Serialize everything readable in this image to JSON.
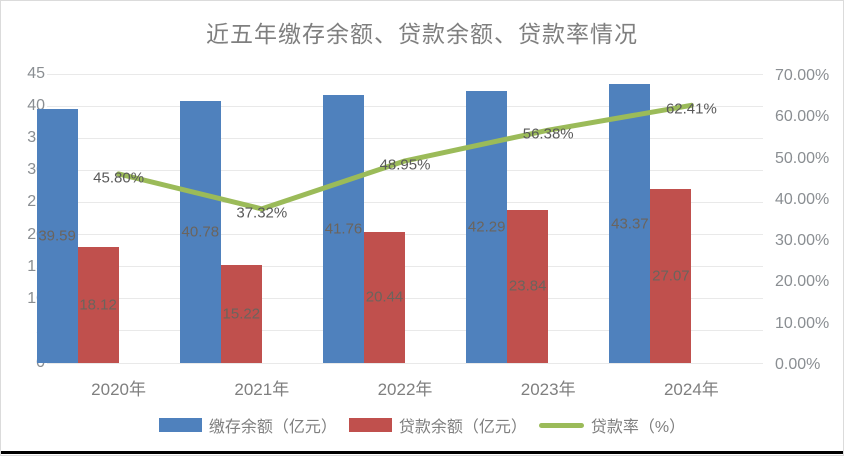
{
  "chart_data": {
    "type": "combo",
    "title": "近五年缴存余额、贷款余额、贷款率情况",
    "categories": [
      "2020年",
      "2021年",
      "2022年",
      "2023年",
      "2024年"
    ],
    "series": [
      {
        "key": "deposit-balance",
        "name": "缴存余额（亿元）",
        "type": "bar",
        "axis": "left",
        "color": "#4F81BD",
        "values": [
          39.59,
          40.78,
          41.76,
          42.29,
          43.37
        ],
        "labels": [
          "39.59",
          "40.78",
          "41.76",
          "42.29",
          "43.37"
        ]
      },
      {
        "key": "loan-balance",
        "name": "贷款余额（亿元）",
        "type": "bar",
        "axis": "left",
        "color": "#C0504D",
        "values": [
          18.12,
          15.22,
          20.44,
          23.84,
          27.07
        ],
        "labels": [
          "18.12",
          "15.22",
          "20.44",
          "23.84",
          "27.07"
        ]
      },
      {
        "key": "loan-rate",
        "name": "贷款率（%）",
        "type": "line",
        "axis": "right",
        "color": "#9BBB59",
        "values": [
          45.8,
          37.32,
          48.95,
          56.38,
          62.41
        ],
        "labels": [
          "45.80%",
          "37.32%",
          "48.95%",
          "56.38%",
          "62.41%"
        ]
      }
    ],
    "left_axis": {
      "min": 0,
      "max": 45,
      "step": 5,
      "tick_labels": [
        "45",
        "40",
        "35",
        "30",
        "25",
        "20",
        "15",
        "10",
        "5",
        "0"
      ]
    },
    "right_axis": {
      "min": 0,
      "max": 70,
      "step": 10,
      "tick_labels": [
        "70.00%",
        "60.00%",
        "50.00%",
        "40.00%",
        "30.00%",
        "20.00%",
        "10.00%",
        "0.00%"
      ]
    },
    "grid": true,
    "legend_position": "bottom"
  }
}
